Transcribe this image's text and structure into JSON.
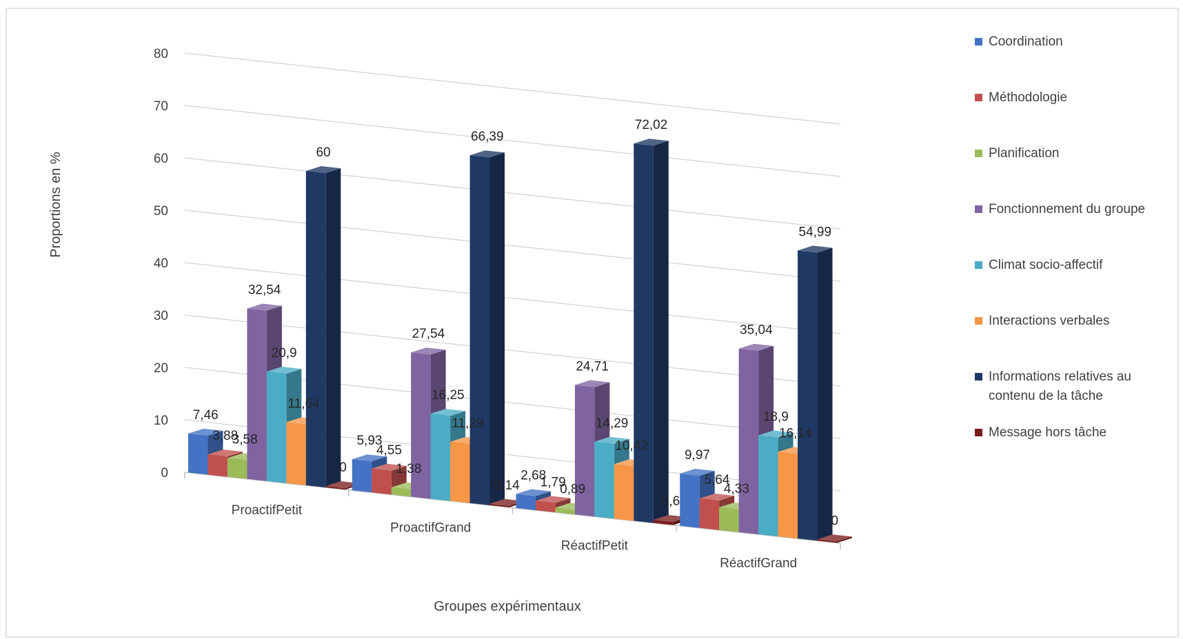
{
  "chart_data": {
    "type": "bar",
    "subtype": "3d-clustered-column",
    "categories": [
      "ProactifPetit",
      "ProactifGrand",
      "RéactifPetit",
      "RéactifGrand"
    ],
    "series": [
      {
        "name": "Coordination",
        "color": "#4472c4",
        "values": [
          7.46,
          5.93,
          2.68,
          9.97
        ],
        "labels": [
          "7,46",
          "5,93",
          "2,68",
          "9,97"
        ]
      },
      {
        "name": "Méthodologie",
        "color": "#c0504d",
        "values": [
          3.88,
          4.55,
          1.79,
          5.64
        ],
        "labels": [
          "3,88",
          "4,55",
          "1,79",
          "5,64"
        ]
      },
      {
        "name": "Planification",
        "color": "#9bbb59",
        "values": [
          3.58,
          1.38,
          0.89,
          4.33
        ],
        "labels": [
          "3,58",
          "1,38",
          "0,89",
          "4,33"
        ]
      },
      {
        "name": "Fonctionnement du groupe",
        "color": "#8064a2",
        "values": [
          32.54,
          27.54,
          24.71,
          35.04
        ],
        "labels": [
          "32,54",
          "27,54",
          "24,71",
          "35,04"
        ]
      },
      {
        "name": "Climat socio-affectif",
        "color": "#4bacc6",
        "values": [
          20.9,
          16.25,
          14.29,
          18.9
        ],
        "labels": [
          "20,9",
          "16,25",
          "14,29",
          "18,9"
        ]
      },
      {
        "name": "Interactions verbales",
        "color": "#f79646",
        "values": [
          11.64,
          11.29,
          10.42,
          16.14
        ],
        "labels": [
          "11,64",
          "11,29",
          "10,42",
          "16,14"
        ]
      },
      {
        "name": "Informations relatives au contenu de la tâche",
        "legend_lines": [
          "Informations relatives au",
          "contenu de la tâche"
        ],
        "color": "#1f3864",
        "values": [
          60,
          66.39,
          72.02,
          54.99
        ],
        "labels": [
          "60",
          "66,39",
          "72,02",
          "54,99"
        ]
      },
      {
        "name": "Message hors tâche",
        "color": "#7b1e1e",
        "values": [
          0,
          0.14,
          0.6,
          0
        ],
        "labels": [
          "0",
          "0,14",
          "0,6",
          "0"
        ]
      }
    ],
    "xlabel": "Groupes expérimentaux",
    "ylabel": "Proportions en %",
    "ylim": [
      0,
      80
    ],
    "yticks": [
      0,
      10,
      20,
      30,
      40,
      50,
      60,
      70,
      80
    ],
    "grid": true,
    "legend": "right"
  }
}
